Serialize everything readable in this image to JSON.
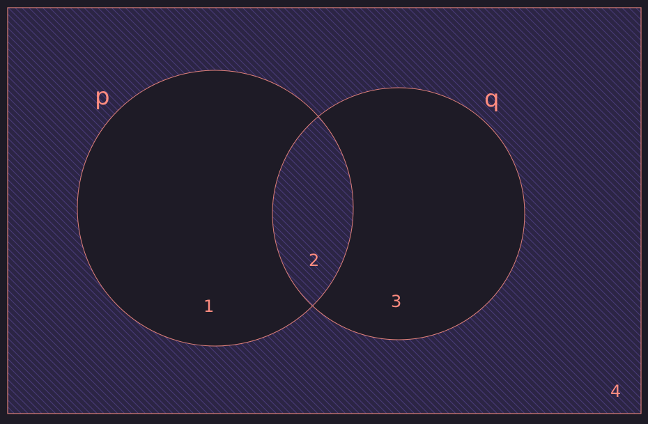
{
  "diagram": {
    "type": "venn",
    "sets": [
      {
        "id": "p",
        "label": "p"
      },
      {
        "id": "q",
        "label": "q"
      }
    ],
    "regions": [
      {
        "id": "only-p",
        "label": "1"
      },
      {
        "id": "p-and-q",
        "label": "2"
      },
      {
        "id": "only-q",
        "label": "3"
      },
      {
        "id": "neither",
        "label": "4"
      }
    ],
    "shaded_regions": [
      "p-and-q",
      "neither"
    ],
    "colors": {
      "background": "#1e1b26",
      "hatch_fill": "#2c2545",
      "hatch_stroke": "#4a3c7a",
      "outline": "#e0807a",
      "label": "#ff8c80"
    }
  }
}
